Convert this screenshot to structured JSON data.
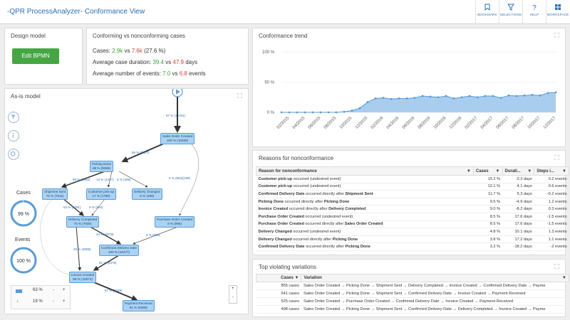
{
  "header": {
    "title": "-QPR ProcessAnalyzer- Conformance View",
    "buttons": [
      {
        "label": "BOOKMARK",
        "icon": "bookmark-icon"
      },
      {
        "label": "SELECTIONS",
        "icon": "filter-icon"
      },
      {
        "label": "HELP",
        "icon": "help-icon"
      },
      {
        "label": "WORKSPACE",
        "icon": "workspace-icon"
      }
    ]
  },
  "design_model": {
    "title": "Design model",
    "edit_button": "Edit BPMN"
  },
  "conformance": {
    "title": "Conforming vs nonconforming cases",
    "cases_label": "Cases:",
    "cases_conf": "2.9k",
    "vs1": "vs",
    "cases_nonconf": "7.6k",
    "cases_pct": "(27.6 %)",
    "duration_label": "Average case duration:",
    "dur_conf": "39.4",
    "vs2": "vs",
    "dur_nonconf": "47.9",
    "dur_unit": "days",
    "events_label": "Average number of events:",
    "ev_conf": "7.0",
    "vs3": "vs",
    "ev_nonconf": "6.8",
    "ev_unit": "events"
  },
  "trend": {
    "title": "Conformance trend",
    "colors": {
      "fill": "#a9cdef",
      "line": "#5b9bd5"
    }
  },
  "chart_data": {
    "type": "area",
    "title": "Conformance trend",
    "xlabel": "",
    "ylabel": "",
    "ylim": [
      0,
      100
    ],
    "yticks": [
      "0 %",
      "50 %",
      "100 %"
    ],
    "x_tick_labels": [
      "02/2015",
      "04/2015",
      "06/2015",
      "08/2015",
      "10/2015",
      "12/2015",
      "02/2016",
      "04/2016",
      "06/2016",
      "08/2016",
      "10/2016",
      "12/2016",
      "02/2017",
      "04/2017",
      "06/2017",
      "08/2017",
      "10/2017",
      "12/2017"
    ],
    "x": [
      "01/2015",
      "02/2015",
      "03/2015",
      "04/2015",
      "05/2015",
      "06/2015",
      "07/2015",
      "08/2015",
      "09/2015",
      "10/2015",
      "11/2015",
      "12/2015",
      "01/2016",
      "02/2016",
      "03/2016",
      "04/2016",
      "05/2016",
      "06/2016",
      "07/2016",
      "08/2016",
      "09/2016",
      "10/2016",
      "11/2016",
      "12/2016",
      "01/2017",
      "02/2017",
      "03/2017",
      "04/2017",
      "05/2017",
      "06/2017",
      "07/2017",
      "08/2017",
      "09/2017",
      "10/2017",
      "11/2017",
      "12/2017"
    ],
    "values": [
      0,
      0,
      0,
      0,
      0,
      0,
      0,
      0,
      1,
      3,
      7,
      17,
      23,
      24,
      22,
      23,
      23,
      24,
      27,
      26,
      25,
      27,
      23,
      25,
      27,
      25,
      27,
      27,
      24,
      28,
      27,
      28,
      29,
      28,
      32,
      33
    ]
  },
  "reasons": {
    "title": "Reasons for nonconformance",
    "columns": [
      "Reason for nonconformance",
      "Cases",
      "Durati...",
      "Steps i..."
    ],
    "rows": [
      {
        "a": "Customer pick-up",
        "mid": "occurred (undesired event)",
        "b": "",
        "cases": "15.2 %",
        "dur": "-3.3 days",
        "steps": "0.2 events"
      },
      {
        "a": "Customer pick-up",
        "mid": "occurred (undesired event)",
        "b": "",
        "cases": "12.1 %",
        "dur": "4.1 days",
        "steps": "0.6 events"
      },
      {
        "a": "Confirmed Delivery Date",
        "mid": "occurred directly after",
        "b": "Shipment Sent",
        "cases": "11.7 %",
        "dur": "5.3 days",
        "steps": "-0.2 events"
      },
      {
        "a": "Picking Done",
        "mid": "occurred directly after",
        "b": "Picking Done",
        "cases": "9.5 %",
        "dur": "-4.9 days",
        "steps": "1.2 events"
      },
      {
        "a": "Invoice Created",
        "mid": "occurred directly after",
        "b": "Delivery Completed",
        "cases": "9.0 %",
        "dur": "-8.2 days",
        "steps": "0.3 events"
      },
      {
        "a": "Purchase Order Created",
        "mid": "occurred (undesired event)",
        "b": "",
        "cases": "8.5 %",
        "dur": "17.6 days",
        "steps": "-1.5 events"
      },
      {
        "a": "Purchase Order Created",
        "mid": "occurred directly after",
        "b": "Sales Order Created",
        "cases": "8.5 %",
        "dur": "17.6 days",
        "steps": "-1.5 events"
      },
      {
        "a": "Delivery Changed",
        "mid": "occurred (undesired event)",
        "b": "",
        "cases": "4.8 %",
        "dur": "10.1 days",
        "steps": "1.3 events"
      },
      {
        "a": "Delivery Changed",
        "mid": "occurred directly after",
        "b": "Picking Done",
        "cases": "3.8 %",
        "dur": "17.2 days",
        "steps": "1.1 events"
      },
      {
        "a": "Confirmed Delivery Date",
        "mid": "occurred directly after",
        "b": "Picking Done",
        "cases": "3.2 %",
        "dur": "-18.2 days",
        "steps": "-2 events"
      }
    ]
  },
  "variations": {
    "title": "Top violating variations",
    "columns": [
      "Cases",
      "Variation"
    ],
    "rows": [
      {
        "cases": "855 cases",
        "variation": "Sales Order Created → Picking Done → Shipment Sent → Delivery Completed → Invoice Created → Confirmed Delivery Date → Payme"
      },
      {
        "cases": "641 cases",
        "variation": "Sales Order Created → Picking Done → Shipment Sent → Confirmed Delivery Date → Invoice Created → Payment Received"
      },
      {
        "cases": "525 cases",
        "variation": "Sales Order Created → Purchase Order Created → Confirmed Delivery Date → Invoice Created → Payment Received"
      },
      {
        "cases": "498 cases",
        "variation": "Sales Order Created → Picking Done → Shipment Sent → Confirmed Delivery Date → Delivery Completed → Invoice Created → Payme"
      }
    ]
  },
  "asis": {
    "title": "As-is model",
    "cases_label": "Cases",
    "cases_value": "99 %",
    "events_label": "Events",
    "events_value": "100 %",
    "ctrl1_value": "63 %",
    "ctrl2_value": "19 %",
    "minus": "-",
    "plus": "+",
    "zoom_in": "+",
    "zoom_out": "-",
    "nodes": [
      {
        "name": "Sales Order Created",
        "pct": "100 % (10465)"
      },
      {
        "name": "Picking Done",
        "pct": "89 % (9289)"
      },
      {
        "name": "Shipment Sent",
        "pct": "72 % (7511)"
      },
      {
        "name": "Customer pick-up",
        "pct": "17 % (1790)"
      },
      {
        "name": "Delivery Changed",
        "pct": "5 % (499)"
      },
      {
        "name": "Delivery Completed",
        "pct": "75 % (7830)"
      },
      {
        "name": "Purchase Order Created",
        "pct": "9 % (995)"
      },
      {
        "name": "Confirmed Delivery Date",
        "pct": "100 % (10477)"
      },
      {
        "name": "Invoice Created",
        "pct": "96 % (10074)"
      },
      {
        "name": "Payment Received",
        "pct": "91 % (9490)"
      }
    ],
    "edges": [
      "97 % (10191)",
      "86 % (9027)",
      "66 % (6852)",
      "14 % (1437)",
      "5 % (499)",
      "9 % (894)(199)",
      "53 % (5591)",
      "9 % (894)",
      "44 % (4578)",
      "6 % (583)",
      "29 % (3059)",
      "61 % (6378)",
      "87 % (7049)"
    ]
  }
}
